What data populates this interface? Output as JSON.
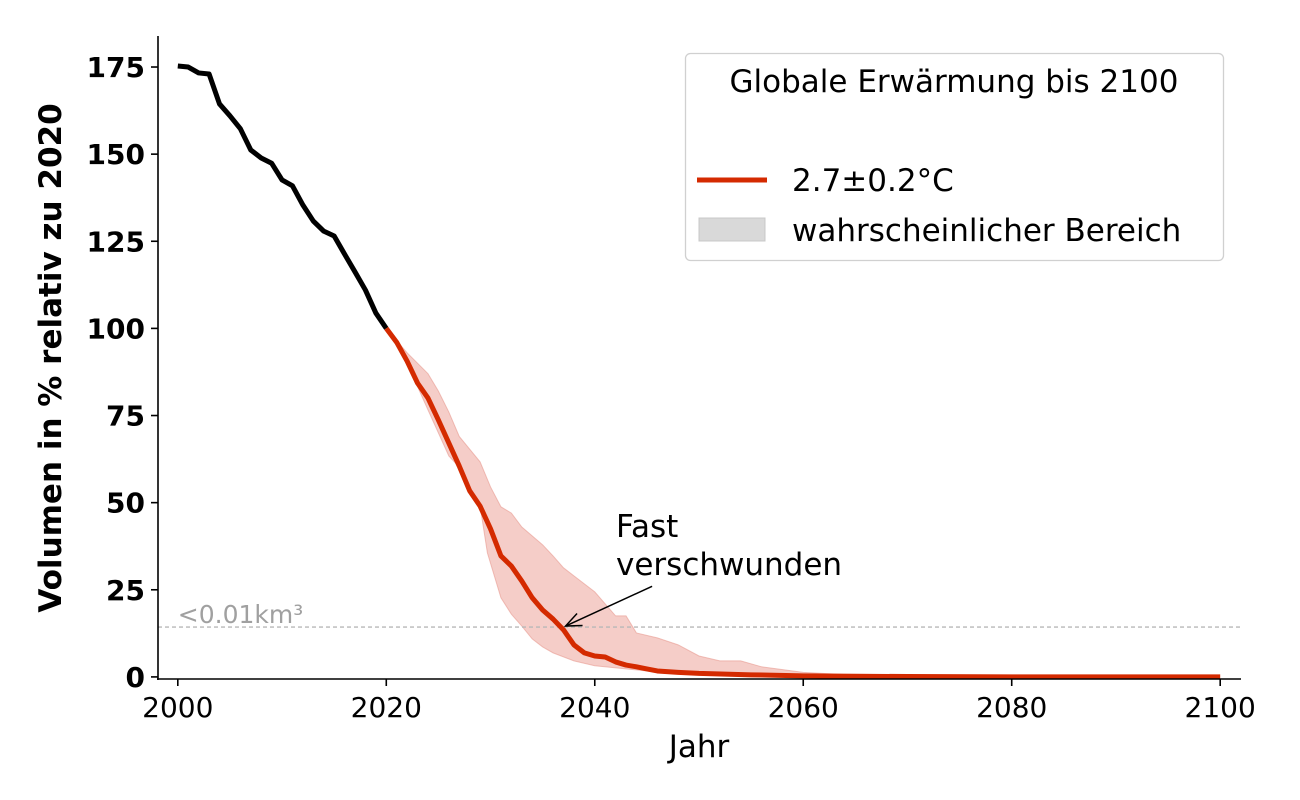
{
  "chart_data": {
    "type": "line",
    "xlabel": "Jahr",
    "ylabel": "Volumen in % relativ zu 2020",
    "xlim": [
      1998.1,
      2101.9
    ],
    "ylim": [
      -0.6,
      183.9
    ],
    "xticks": [
      2000,
      2020,
      2040,
      2060,
      2080,
      2100
    ],
    "yticks": [
      0,
      25,
      50,
      75,
      100,
      125,
      150,
      175
    ],
    "grid": false,
    "legend": {
      "placement": "top-right",
      "title": "Globale Erwärmung bis 2100",
      "entries": [
        "2.7±0.2°C",
        "wahrscheinlicher Bereich"
      ]
    },
    "colors": {
      "historical": "#000000",
      "projection": "#d42a00",
      "band": "#f5cdc8",
      "band_edge": "#e89a90",
      "threshold": "#b8b8b8",
      "threshold_label": "#a0a0a0",
      "legend_patch": "#d9d9d9"
    },
    "historical": {
      "x": [
        2000,
        2001,
        2002,
        2003,
        2004,
        2005,
        2006,
        2007,
        2008,
        2009,
        2010,
        2011,
        2012,
        2013,
        2014,
        2015,
        2016,
        2017,
        2018,
        2019,
        2020
      ],
      "y": [
        175.3,
        175,
        173.3,
        173,
        164.4,
        161,
        157.3,
        151.2,
        148.9,
        147.4,
        142.6,
        140.9,
        135.4,
        130.8,
        127.9,
        126.5,
        121.3,
        116.2,
        111,
        104.4,
        100
      ]
    },
    "series": [
      {
        "name": "2.7±0.2°C",
        "x": [
          2020,
          2021,
          2022,
          2023,
          2024,
          2025,
          2026,
          2027,
          2028,
          2029,
          2030,
          2031,
          2032,
          2033,
          2034,
          2035,
          2036,
          2037,
          2038,
          2039,
          2040,
          2041,
          2042,
          2043,
          2044,
          2045,
          2046,
          2048,
          2050,
          2055,
          2060,
          2070,
          2080,
          2090,
          2100
        ],
        "y": [
          100,
          96,
          90.6,
          84.3,
          80,
          73.7,
          67.1,
          60.5,
          53.4,
          49,
          42.5,
          34.7,
          31.8,
          27.5,
          22.7,
          19.2,
          16.6,
          13.5,
          9.2,
          6.9,
          6,
          5.7,
          4.3,
          3.4,
          2.9,
          2.3,
          1.7,
          1.3,
          1,
          0.6,
          0.3,
          0.1,
          0,
          0,
          0
        ]
      }
    ],
    "band": {
      "name": "wahrscheinlicher Bereich",
      "x_upper": [
        2020,
        2022,
        2024,
        2025,
        2026,
        2027,
        2029,
        2030,
        2031,
        2032,
        2033,
        2035,
        2036,
        2037,
        2038,
        2040,
        2042,
        2043,
        2044,
        2046,
        2048,
        2050,
        2052,
        2054,
        2056,
        2060,
        2065,
        2070,
        2100
      ],
      "upper": [
        100,
        93,
        87,
        82,
        76,
        69,
        61.7,
        54.5,
        48.8,
        47,
        43,
        37.9,
        34.7,
        31.3,
        29,
        24.4,
        17.5,
        17.5,
        12.6,
        11.2,
        9.2,
        6,
        4.6,
        4.6,
        2.9,
        1.3,
        0.5,
        0.2,
        0
      ],
      "x_lower": [
        2020,
        2022,
        2024,
        2026,
        2027,
        2028,
        2029,
        2029.7,
        2031,
        2032,
        2033,
        2034,
        2035,
        2036,
        2038,
        2040,
        2045,
        2050,
        2055,
        2060,
        2100
      ],
      "lower": [
        100,
        90,
        76.6,
        63.4,
        60.2,
        53.6,
        49,
        35.6,
        22.7,
        18,
        14.6,
        10.9,
        8.6,
        6.9,
        4.6,
        3.2,
        1.7,
        0.7,
        0.3,
        0.1,
        0
      ]
    },
    "threshold": {
      "y": 14.3,
      "label": "<0.01km³"
    },
    "annotation": {
      "text_lines": [
        "Fast",
        "verschwunden"
      ],
      "xy": [
        2037.2,
        14.6
      ],
      "xytext": [
        2045.5,
        26
      ]
    }
  }
}
